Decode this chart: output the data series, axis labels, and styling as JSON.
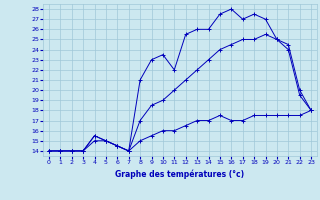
{
  "title": "Graphe des températures (°c)",
  "background_color": "#cce8f0",
  "plot_bg_color": "#cce8f0",
  "grid_color": "#a0c8d8",
  "line_color": "#0000bb",
  "label_bg_color": "#ffffff",
  "x_ticks": [
    0,
    1,
    2,
    3,
    4,
    5,
    6,
    7,
    8,
    9,
    10,
    11,
    12,
    13,
    14,
    15,
    16,
    17,
    18,
    19,
    20,
    21,
    22,
    23
  ],
  "y_ticks": [
    14,
    15,
    16,
    17,
    18,
    19,
    20,
    21,
    22,
    23,
    24,
    25,
    26,
    27,
    28
  ],
  "ylim": [
    13.5,
    28.5
  ],
  "xlim": [
    -0.5,
    23.5
  ],
  "line1_x": [
    0,
    1,
    2,
    3,
    4,
    5,
    6,
    7,
    8,
    9,
    10,
    11,
    12,
    13,
    14,
    15,
    16,
    17,
    18,
    19,
    20,
    21,
    22,
    23
  ],
  "line1_y": [
    14,
    14,
    14,
    14,
    15,
    15,
    14.5,
    14,
    15,
    15.5,
    16,
    16,
    16.5,
    17,
    17,
    17.5,
    17,
    17,
    17.5,
    17.5,
    17.5,
    17.5,
    17.5,
    18
  ],
  "line2_x": [
    0,
    1,
    2,
    3,
    4,
    5,
    6,
    7,
    8,
    9,
    10,
    11,
    12,
    13,
    14,
    15,
    16,
    17,
    18,
    19,
    20,
    21,
    22,
    23
  ],
  "line2_y": [
    14,
    14,
    14,
    14,
    15.5,
    15,
    14.5,
    14,
    17,
    18.5,
    19,
    20,
    21,
    22,
    23,
    24,
    24.5,
    25,
    25,
    25.5,
    25,
    24,
    19.5,
    18
  ],
  "line3_x": [
    0,
    1,
    2,
    3,
    4,
    5,
    6,
    7,
    8,
    9,
    10,
    11,
    12,
    13,
    14,
    15,
    16,
    17,
    18,
    19,
    20,
    21,
    22,
    23
  ],
  "line3_y": [
    14,
    14,
    14,
    14,
    15.5,
    15,
    14.5,
    14,
    21,
    23,
    23.5,
    22,
    25.5,
    26,
    26,
    27.5,
    28,
    27,
    27.5,
    27,
    25,
    24.5,
    20,
    18
  ]
}
